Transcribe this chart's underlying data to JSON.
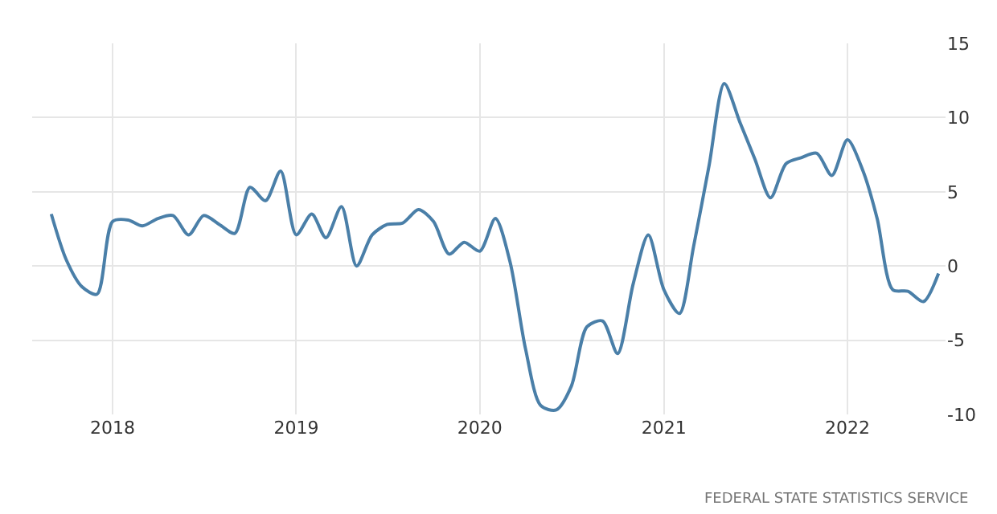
{
  "chart_data": {
    "type": "line",
    "x": [
      "2017-09",
      "2017-10",
      "2017-11",
      "2017-12",
      "2018-01",
      "2018-02",
      "2018-03",
      "2018-04",
      "2018-05",
      "2018-06",
      "2018-07",
      "2018-08",
      "2018-09",
      "2018-10",
      "2018-11",
      "2018-12",
      "2019-01",
      "2019-02",
      "2019-03",
      "2019-04",
      "2019-05",
      "2019-06",
      "2019-07",
      "2019-08",
      "2019-09",
      "2019-10",
      "2019-11",
      "2019-12",
      "2020-01",
      "2020-02",
      "2020-03",
      "2020-04",
      "2020-05",
      "2020-06",
      "2020-07",
      "2020-08",
      "2020-09",
      "2020-10",
      "2020-11",
      "2020-12",
      "2021-01",
      "2021-02",
      "2021-03",
      "2021-04",
      "2021-05",
      "2021-06",
      "2021-07",
      "2021-08",
      "2021-09",
      "2021-10",
      "2021-11",
      "2021-12",
      "2022-01",
      "2022-02",
      "2022-03",
      "2022-04",
      "2022-05",
      "2022-06",
      "2022-07"
    ],
    "series": [
      {
        "color": "#4a7fa8",
        "values": [
          3.5,
          0.4,
          -1.4,
          -1.9,
          3.0,
          3.1,
          2.7,
          3.2,
          3.4,
          2.1,
          3.4,
          2.8,
          2.2,
          5.3,
          4.4,
          6.4,
          2.1,
          3.5,
          1.9,
          4.0,
          0.0,
          2.1,
          2.8,
          2.9,
          3.8,
          3.0,
          0.8,
          1.6,
          1.0,
          3.2,
          0.3,
          -5.6,
          -9.4,
          -9.7,
          -8.1,
          -4.1,
          -3.7,
          -5.9,
          -1.2,
          2.1,
          -1.6,
          -3.2,
          1.3,
          6.8,
          12.3,
          9.7,
          7.2,
          4.6,
          6.9,
          7.3,
          7.6,
          6.1,
          8.5,
          6.4,
          3.2,
          -1.6,
          -1.7,
          -2.4,
          -0.5
        ]
      }
    ],
    "xlim": [
      "2017-07-25",
      "2022-07-15"
    ],
    "xticks": [
      "2018",
      "2019",
      "2020",
      "2021",
      "2022"
    ],
    "ylim": [
      -10,
      15
    ],
    "yticks": [
      -10,
      -5,
      0,
      5,
      10,
      15
    ],
    "grid": true,
    "marker": "none",
    "line_style": "solid",
    "annotations": [
      "FEDERAL STATE STATISTICS SERVICE"
    ]
  }
}
